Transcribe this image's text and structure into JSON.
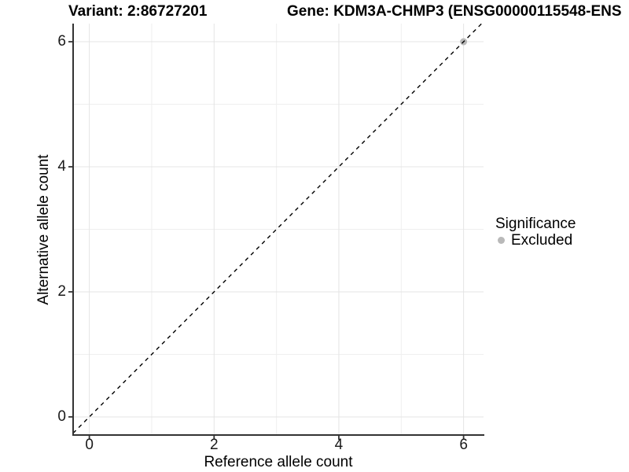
{
  "titles": {
    "variant": "Variant: 2:86727201",
    "gene": "Gene: KDM3A-CHMP3 (ENSG00000115548-ENS"
  },
  "chart_data": {
    "type": "scatter",
    "title": "Variant: 2:86727201 / Gene: KDM3A-CHMP3 (ENSG00000115548-ENS",
    "xlabel": "Reference allele count",
    "ylabel": "Alternative allele count",
    "xlim": [
      -0.26,
      6.32
    ],
    "ylim": [
      -0.29,
      6.29
    ],
    "x_ticks": {
      "values": [
        0,
        2,
        4,
        6
      ],
      "labels": [
        "0",
        "2",
        "4",
        "6"
      ]
    },
    "y_ticks": {
      "values": [
        0,
        2,
        4,
        6
      ],
      "labels": [
        "0",
        "2",
        "4",
        "6"
      ]
    },
    "major_gridlines": [
      0,
      2,
      4,
      6
    ],
    "minor_gridlines": [
      1,
      3,
      5
    ],
    "grid": true,
    "identity_line": {
      "slope": 1,
      "intercept": 0,
      "style": "dashed",
      "color": "#000000"
    },
    "series": [
      {
        "name": "Excluded",
        "color": "#b9b9b9",
        "points": [
          {
            "x": 6,
            "y": 6
          }
        ]
      }
    ],
    "legend": {
      "title": "Significance",
      "position": "right",
      "items": [
        {
          "label": "Excluded",
          "color": "#b9b9b9"
        }
      ]
    }
  },
  "colors": {
    "background": "#ffffff",
    "grid_major": "#e4e4e4",
    "grid_minor": "#efefef",
    "axis": "#333333",
    "identity_line": "#000000",
    "point": "#b9b9b9",
    "text": "#000000"
  }
}
